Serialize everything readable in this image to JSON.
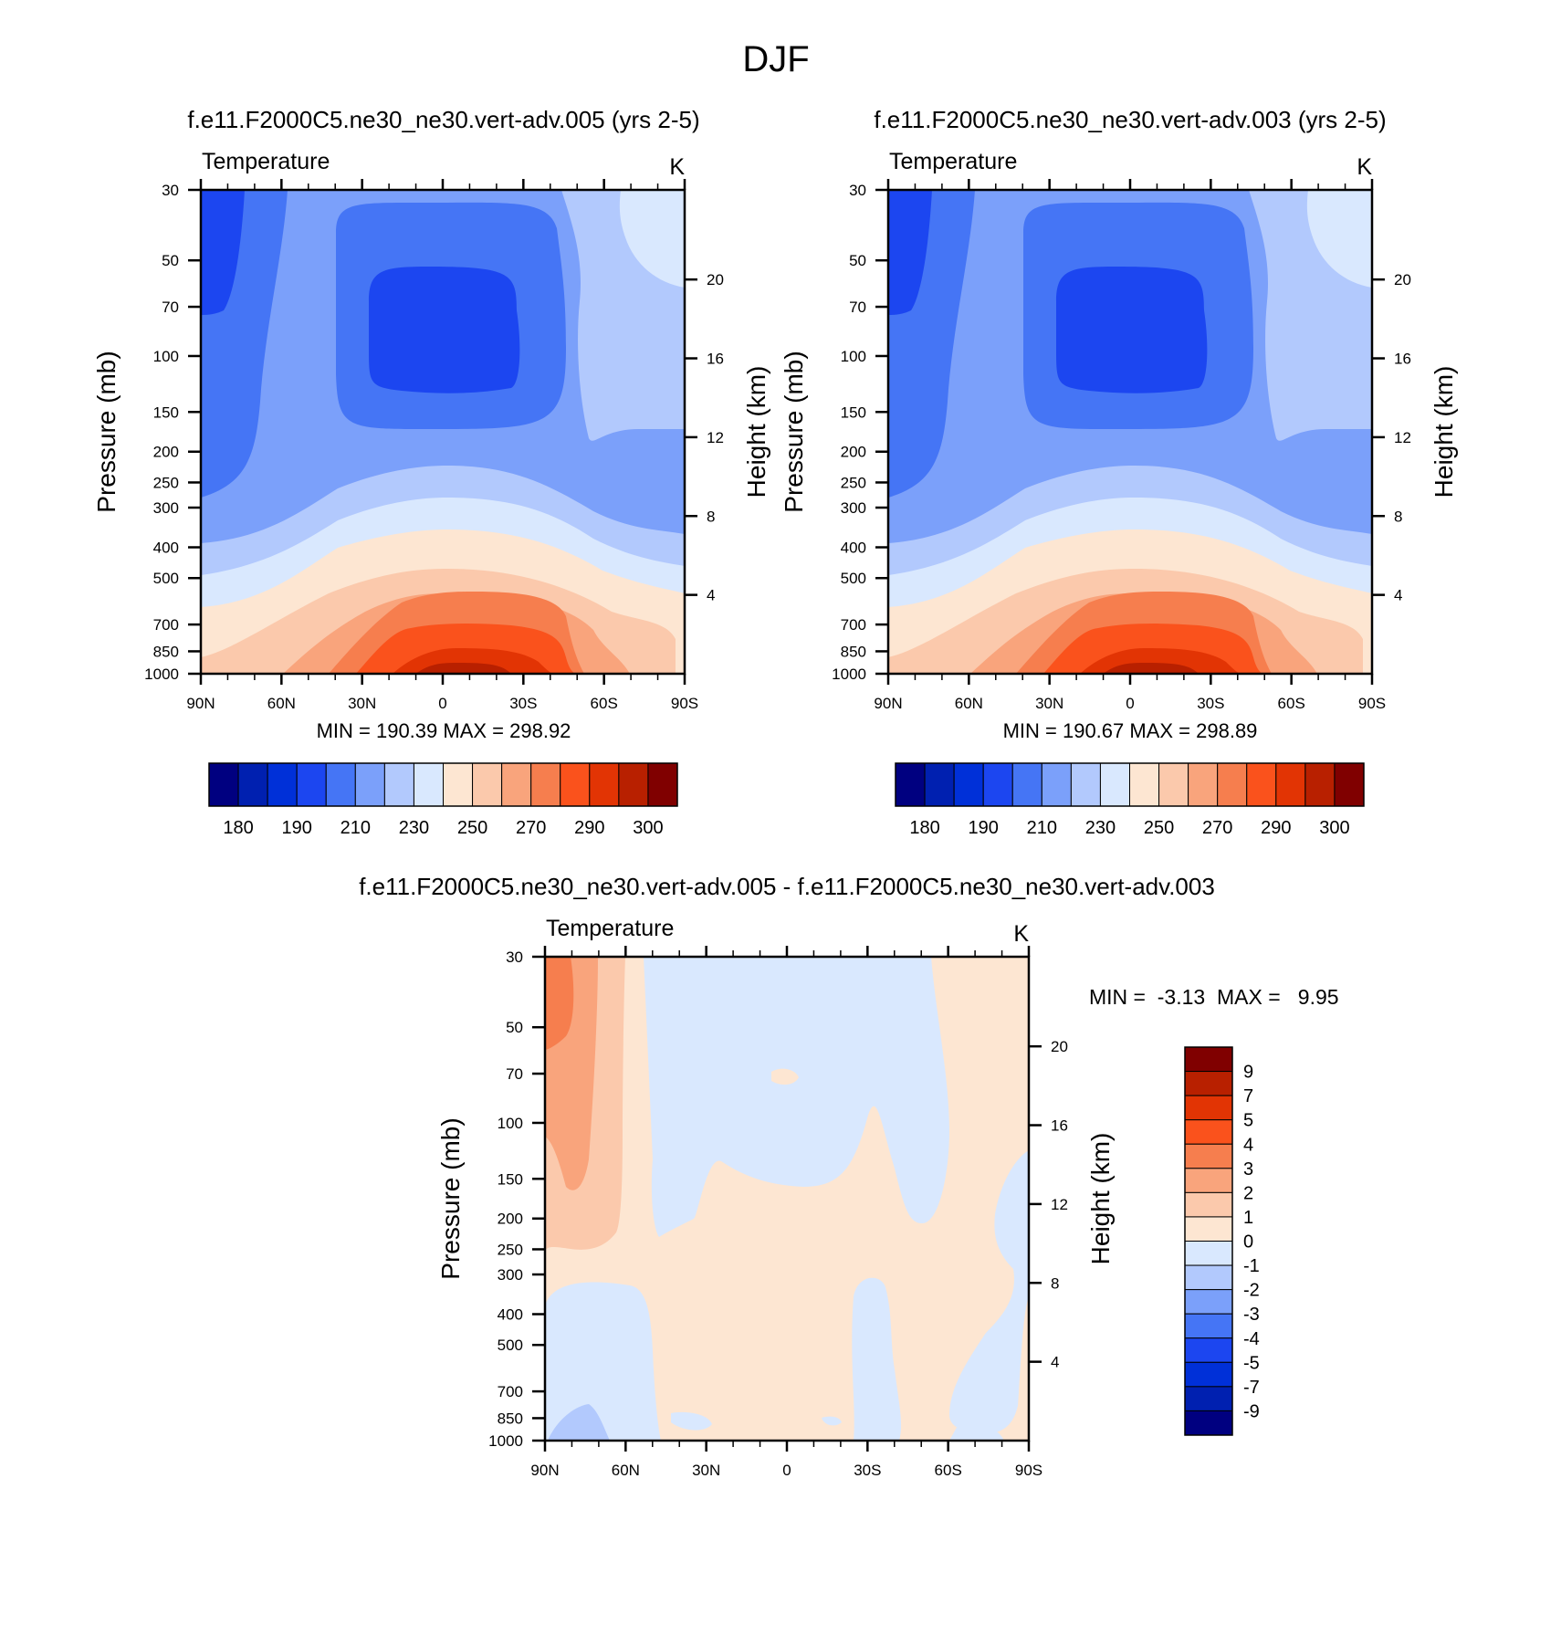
{
  "figure_title": "DJF",
  "colors": {
    "abs_levels": [
      "#000080",
      "#0020b0",
      "#0030d8",
      "#1c46f0",
      "#4575f5",
      "#7ba0fa",
      "#b2c9fd",
      "#d9e8fe",
      "#fde6d2",
      "#fbc9ac",
      "#f9a47c",
      "#f67e4e",
      "#fa521c",
      "#e23404",
      "#b82000",
      "#800000"
    ],
    "diff_levels": [
      "#000080",
      "#0020b0",
      "#0030d8",
      "#1c46f0",
      "#4575f5",
      "#7ba0fa",
      "#b2c9fd",
      "#d9e8fe",
      "#fde6d2",
      "#fbc9ac",
      "#f9a47c",
      "#f67e4e",
      "#fa521c",
      "#e23404",
      "#b82000",
      "#800000"
    ]
  },
  "chart_data": [
    {
      "type": "contour",
      "title": "f.e11.F2000C5.ne30_ne30.vert-adv.005 (yrs 2-5)",
      "left_label": "Temperature",
      "units_label": "K",
      "ylabel": "Pressure (mb)",
      "ylabel_right": "Height (km)",
      "x_ticks": [
        "90N",
        "60N",
        "30N",
        "0",
        "30S",
        "60S",
        "90S"
      ],
      "x_range": [
        90,
        -90
      ],
      "y_ticks": [
        30,
        50,
        70,
        100,
        150,
        200,
        250,
        300,
        400,
        500,
        700,
        850,
        1000
      ],
      "y_range": [
        1000,
        30
      ],
      "y_scale": "log",
      "height_ticks": [
        4,
        8,
        12,
        16,
        20
      ],
      "stats": "MIN = 190.39  MAX = 298.92",
      "min": 190.39,
      "max": 298.92,
      "colorbar": {
        "orientation": "horizontal",
        "labels": [
          "180",
          "190",
          "210",
          "230",
          "250",
          "270",
          "290",
          "300"
        ]
      }
    },
    {
      "type": "contour",
      "title": "f.e11.F2000C5.ne30_ne30.vert-adv.003 (yrs 2-5)",
      "left_label": "Temperature",
      "units_label": "K",
      "ylabel": "Pressure (mb)",
      "ylabel_right": "Height (km)",
      "x_ticks": [
        "90N",
        "60N",
        "30N",
        "0",
        "30S",
        "60S",
        "90S"
      ],
      "x_range": [
        90,
        -90
      ],
      "y_ticks": [
        30,
        50,
        70,
        100,
        150,
        200,
        250,
        300,
        400,
        500,
        700,
        850,
        1000
      ],
      "y_range": [
        1000,
        30
      ],
      "y_scale": "log",
      "height_ticks": [
        4,
        8,
        12,
        16,
        20
      ],
      "stats": "MIN = 190.67  MAX = 298.89",
      "min": 190.67,
      "max": 298.89,
      "colorbar": {
        "orientation": "horizontal",
        "labels": [
          "180",
          "190",
          "210",
          "230",
          "250",
          "270",
          "290",
          "300"
        ]
      }
    },
    {
      "type": "contour",
      "title": "f.e11.F2000C5.ne30_ne30.vert-adv.005 - f.e11.F2000C5.ne30_ne30.vert-adv.003",
      "left_label": "Temperature",
      "units_label": "K",
      "ylabel": "Pressure (mb)",
      "ylabel_right": "Height (km)",
      "x_ticks": [
        "90N",
        "60N",
        "30N",
        "0",
        "30S",
        "60S",
        "90S"
      ],
      "x_range": [
        90,
        -90
      ],
      "y_ticks": [
        30,
        50,
        70,
        100,
        150,
        200,
        250,
        300,
        400,
        500,
        700,
        850,
        1000
      ],
      "y_range": [
        1000,
        30
      ],
      "y_scale": "log",
      "height_ticks": [
        4,
        8,
        12,
        16,
        20
      ],
      "stats": "MIN =  -3.13  MAX =   9.95",
      "min": -3.13,
      "max": 9.95,
      "colorbar": {
        "orientation": "vertical",
        "labels": [
          "9",
          "7",
          "5",
          "4",
          "3",
          "2",
          "1",
          "0",
          "-1",
          "-2",
          "-3",
          "-4",
          "-5",
          "-7",
          "-9"
        ]
      }
    }
  ]
}
